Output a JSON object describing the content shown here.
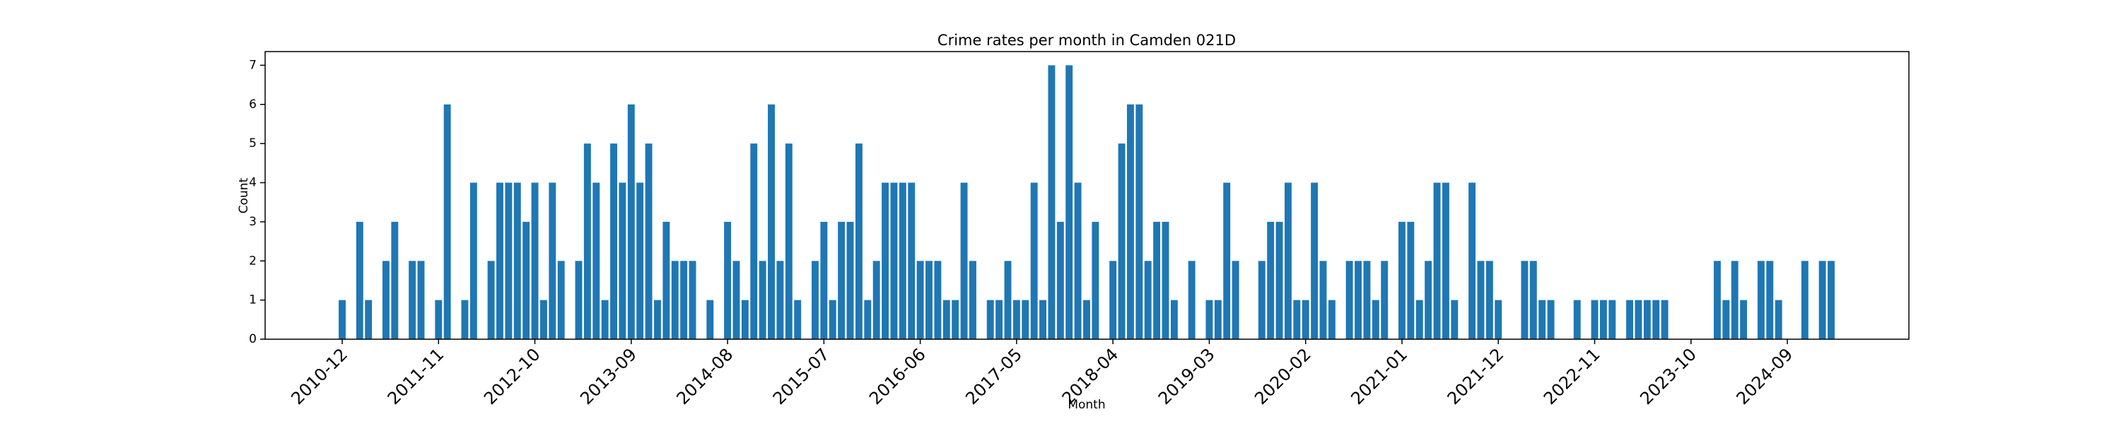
{
  "chart_data": {
    "type": "bar",
    "title": "Crime rates per month in Camden 021D",
    "x_label": "Month",
    "y_label": "Count",
    "color": "#1f77b4",
    "categories": [
      "2010-12",
      null,
      null,
      null,
      null,
      null,
      null,
      null,
      null,
      null,
      null,
      "2011-11",
      null,
      null,
      null,
      null,
      null,
      null,
      null,
      null,
      null,
      null,
      "2012-10",
      null,
      null,
      null,
      null,
      null,
      null,
      null,
      null,
      null,
      null,
      "2013-09",
      null,
      null,
      null,
      null,
      null,
      null,
      null,
      null,
      null,
      null,
      "2014-08",
      null,
      null,
      null,
      null,
      null,
      null,
      null,
      null,
      null,
      null,
      "2015-07",
      null,
      null,
      null,
      null,
      null,
      null,
      null,
      null,
      null,
      null,
      "2016-06",
      null,
      null,
      null,
      null,
      null,
      null,
      null,
      null,
      null,
      null,
      "2017-05",
      null,
      null,
      null,
      null,
      null,
      null,
      null,
      null,
      null,
      null,
      "2018-04",
      null,
      null,
      null,
      null,
      null,
      null,
      null,
      null,
      null,
      null,
      "2019-03",
      null,
      null,
      null,
      null,
      null,
      null,
      null,
      null,
      null,
      null,
      "2020-02",
      null,
      null,
      null,
      null,
      null,
      null,
      null,
      null,
      null,
      null,
      "2021-01",
      null,
      null,
      null,
      null,
      null,
      null,
      null,
      null,
      null,
      null,
      "2021-12",
      null,
      null,
      null,
      null,
      null,
      null,
      null,
      null,
      null,
      null,
      "2022-11",
      null,
      null,
      null,
      null,
      null,
      null,
      null,
      null,
      null,
      null,
      "2023-10",
      null,
      null,
      null,
      null,
      null,
      null,
      null,
      null,
      null,
      null,
      "2024-09",
      null,
      null,
      null,
      null,
      null
    ],
    "values": [
      1,
      0,
      3,
      1,
      0,
      2,
      3,
      0,
      2,
      2,
      0,
      1,
      6,
      0,
      1,
      4,
      0,
      2,
      4,
      4,
      4,
      3,
      4,
      1,
      4,
      2,
      0,
      2,
      5,
      4,
      1,
      5,
      4,
      6,
      4,
      5,
      1,
      3,
      2,
      2,
      2,
      0,
      1,
      0,
      3,
      2,
      1,
      5,
      2,
      6,
      2,
      5,
      1,
      0,
      2,
      3,
      1,
      3,
      3,
      5,
      1,
      2,
      4,
      4,
      4,
      4,
      2,
      2,
      2,
      1,
      1,
      4,
      2,
      0,
      1,
      1,
      2,
      1,
      1,
      4,
      1,
      7,
      3,
      7,
      4,
      1,
      3,
      0,
      2,
      5,
      6,
      6,
      2,
      3,
      3,
      1,
      0,
      2,
      0,
      1,
      1,
      4,
      2,
      0,
      0,
      2,
      3,
      3,
      4,
      1,
      1,
      4,
      2,
      1,
      0,
      2,
      2,
      2,
      1,
      2,
      0,
      3,
      3,
      1,
      2,
      4,
      4,
      1,
      0,
      4,
      2,
      2,
      1,
      0,
      0,
      2,
      2,
      1,
      1,
      0,
      0,
      1,
      0,
      1,
      1,
      1,
      0,
      1,
      1,
      1,
      1,
      1,
      0,
      0,
      0,
      0,
      0,
      2,
      1,
      2,
      1,
      0,
      2,
      2,
      1,
      0,
      0,
      2,
      0,
      2,
      2
    ],
    "ylim": [
      0,
      7.35
    ],
    "yticks": [
      0,
      1,
      2,
      3,
      4,
      5,
      6,
      7
    ],
    "grid": false
  }
}
